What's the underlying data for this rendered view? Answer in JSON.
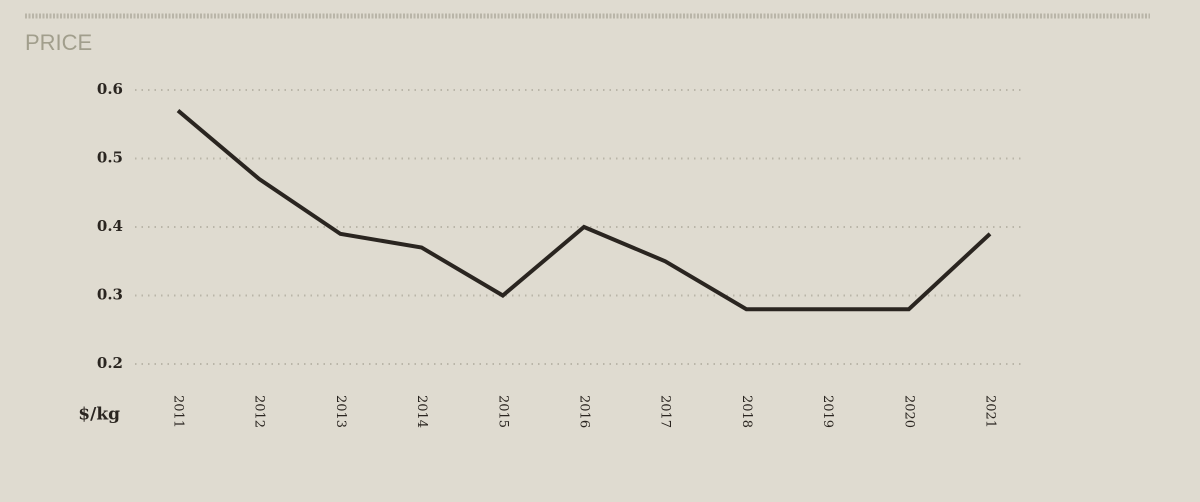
{
  "chart_data": {
    "type": "line",
    "title": "PRICE",
    "ylabel": "$/kg",
    "categories": [
      "2011",
      "2012",
      "2013",
      "2014",
      "2015",
      "2016",
      "2017",
      "2018",
      "2019",
      "2020",
      "2021"
    ],
    "series": [
      {
        "name": null,
        "color": "#2a2520",
        "values": [
          0.57,
          0.47,
          0.39,
          0.37,
          0.3,
          0.4,
          0.35,
          0.28,
          0.28,
          0.28,
          0.39
        ]
      }
    ],
    "ylim": [
      0.2,
      0.6
    ],
    "yticks": [
      0.2,
      0.3,
      0.4,
      0.5,
      0.6
    ],
    "grid": true
  }
}
